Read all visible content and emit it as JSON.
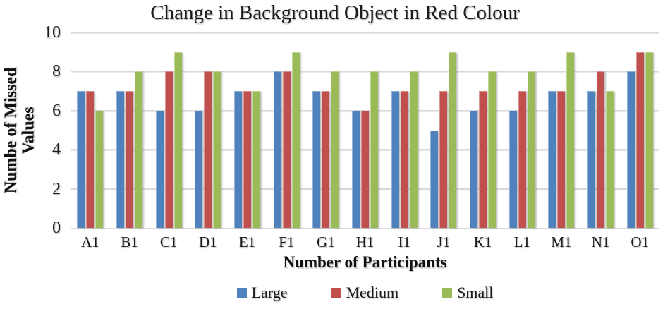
{
  "chart_data": {
    "type": "bar",
    "title": "Change in Background Object in Red Colour",
    "xlabel": "Number of Participants",
    "ylabel": "Numbe of Missed Values",
    "ylabel_lines": [
      "Numbe of Missed",
      "Values"
    ],
    "categories": [
      "A1",
      "B1",
      "C1",
      "D1",
      "E1",
      "F1",
      "G1",
      "H1",
      "I1",
      "J1",
      "K1",
      "L1",
      "M1",
      "N1",
      "O1"
    ],
    "series": [
      {
        "name": "Large",
        "color": "#4F81BD",
        "values": [
          7,
          7,
          6,
          6,
          7,
          8,
          7,
          6,
          7,
          5,
          6,
          6,
          7,
          7,
          8
        ]
      },
      {
        "name": "Medium",
        "color": "#C0504D",
        "values": [
          7,
          7,
          8,
          8,
          7,
          8,
          7,
          6,
          7,
          7,
          7,
          7,
          7,
          8,
          9
        ]
      },
      {
        "name": "Small",
        "color": "#9BBB59",
        "values": [
          6,
          8,
          9,
          8,
          7,
          9,
          8,
          8,
          8,
          9,
          8,
          8,
          9,
          7,
          9
        ]
      }
    ],
    "ylim": [
      0,
      10
    ],
    "yticks": [
      0,
      2,
      4,
      6,
      8,
      10
    ],
    "grid": true,
    "grid_color": "#d9d9d9",
    "legend_position": "bottom",
    "background_color": "#ffffff",
    "text_color": "#1a1a1a"
  }
}
